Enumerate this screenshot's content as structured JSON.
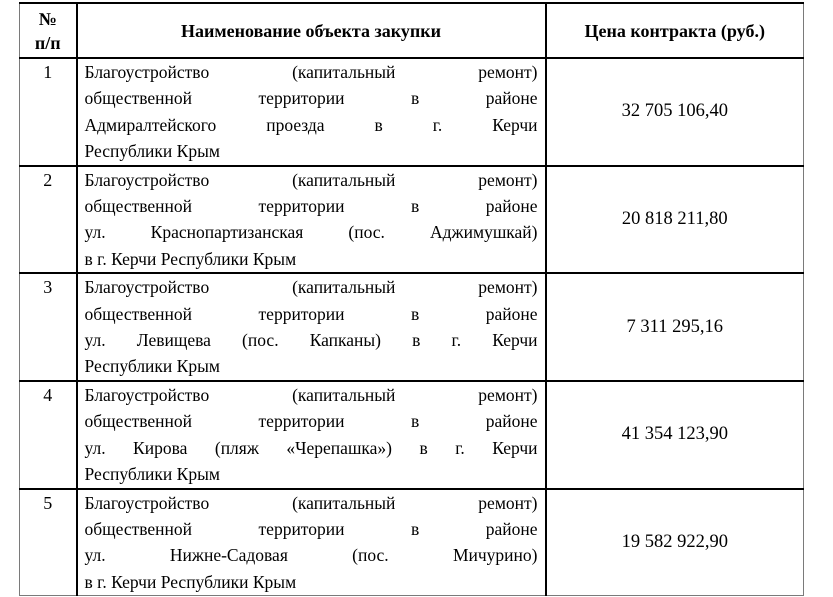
{
  "colors": {
    "background": "#ffffff",
    "text": "#000000",
    "grid_border": "#000000",
    "outer_border": "#7a7a7a"
  },
  "table": {
    "header": {
      "num_line1": "№",
      "num_line2": "п/п",
      "name": "Наименование объекта закупки",
      "price": "Цена контракта (руб.)"
    },
    "rows": [
      {
        "num": "1",
        "name_lines": [
          "Благоустройство (капитальный ремонт)",
          "общественной территории в районе",
          "Адмиралтейского проезда в г. Керчи",
          "Республики Крым"
        ],
        "price": "32 705 106,40"
      },
      {
        "num": "2",
        "name_lines": [
          "Благоустройство (капитальный ремонт)",
          "общественной территории в районе",
          "ул. Краснопартизанская (пос. Аджимушкай)",
          "в г. Керчи Республики Крым"
        ],
        "price": "20 818 211,80"
      },
      {
        "num": "3",
        "name_lines": [
          "Благоустройство (капитальный ремонт)",
          "общественной территории в районе",
          "ул. Левищева (пос. Капканы) в г. Керчи",
          "Республики Крым"
        ],
        "price": "7 311 295,16"
      },
      {
        "num": "4",
        "name_lines": [
          "Благоустройство (капитальный ремонт)",
          "общественной территории в районе",
          "ул. Кирова (пляж «Черепашка») в г. Керчи",
          "Республики Крым"
        ],
        "price": "41 354 123,90"
      },
      {
        "num": "5",
        "name_lines": [
          "Благоустройство (капитальный ремонт)",
          "общественной территории в районе",
          "ул. Нижне-Садовая (пос. Мичурино)",
          "в г. Керчи Республики Крым"
        ],
        "price": "19 582 922,90"
      }
    ]
  }
}
